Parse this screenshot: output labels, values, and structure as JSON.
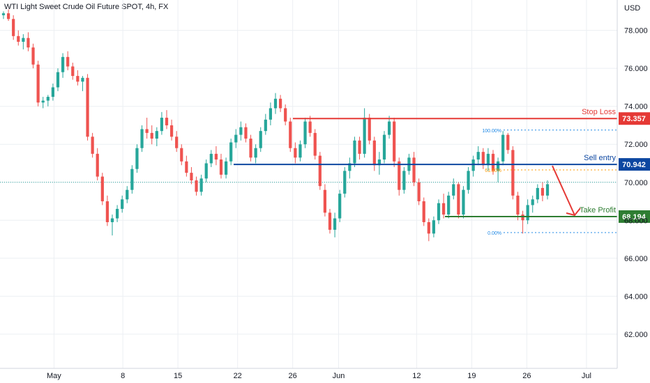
{
  "header": {
    "title": "WTI Light Sweet Crude Oil Future SPOT, 4h, FX",
    "currency": "USD"
  },
  "colors": {
    "up": "#26a69a",
    "down": "#ef5350",
    "stop": "#e53935",
    "entry": "#0d47a1",
    "profit": "#2e7d32",
    "fib": "#1e88e5",
    "fib618": "#ff9800",
    "grid": "#eceff3",
    "axis_text": "#131722"
  },
  "chart_data": {
    "type": "candlestick",
    "title": "WTI Light Sweet Crude Oil Future SPOT, 4h, FX",
    "ylabel": "USD",
    "ylim": [
      60.2,
      79.6
    ],
    "y_ticks": [
      "62.000",
      "64.000",
      "66.000",
      "68.000",
      "70.000",
      "72.000",
      "74.000",
      "76.000",
      "78.000"
    ],
    "x_ticks": [
      "May",
      "8",
      "15",
      "22",
      "26",
      "Jun",
      "12",
      "19",
      "26",
      "Jul"
    ],
    "last_price": 70.0,
    "levels": [
      {
        "name": "Stop Loss",
        "value": 73.357,
        "label": "73.357"
      },
      {
        "name": "Sell entry",
        "value": 70.942,
        "label": "70.942"
      },
      {
        "name": "Take Profit",
        "value": 68.194,
        "label": "68.194"
      }
    ],
    "fibonacci": [
      {
        "level": "100.00%",
        "value": 72.75
      },
      {
        "level": "61.80%",
        "value": 70.65
      },
      {
        "level": "0.00%",
        "value": 67.35
      }
    ],
    "arrow": {
      "from_price": 70.942,
      "to_price": 68.194
    },
    "candles": [
      [
        78.8,
        79.0,
        78.6,
        78.9
      ],
      [
        78.9,
        79.1,
        78.5,
        78.6
      ],
      [
        78.6,
        78.8,
        77.5,
        77.7
      ],
      [
        77.7,
        78.0,
        77.2,
        77.4
      ],
      [
        77.4,
        77.8,
        77.0,
        77.6
      ],
      [
        77.6,
        77.9,
        76.9,
        77.1
      ],
      [
        77.1,
        77.3,
        76.0,
        76.2
      ],
      [
        76.2,
        76.4,
        74.0,
        74.2
      ],
      [
        74.2,
        74.5,
        73.9,
        74.3
      ],
      [
        74.3,
        74.6,
        74.0,
        74.5
      ],
      [
        74.5,
        75.2,
        74.3,
        75.0
      ],
      [
        75.0,
        76.0,
        74.8,
        75.8
      ],
      [
        75.8,
        76.8,
        75.5,
        76.6
      ],
      [
        76.6,
        76.9,
        75.9,
        76.1
      ],
      [
        76.1,
        76.3,
        75.4,
        75.6
      ],
      [
        75.6,
        75.9,
        75.1,
        75.3
      ],
      [
        75.3,
        75.6,
        74.8,
        75.5
      ],
      [
        75.5,
        75.7,
        72.2,
        72.4
      ],
      [
        72.4,
        72.6,
        71.3,
        71.5
      ],
      [
        71.5,
        71.8,
        70.1,
        70.3
      ],
      [
        70.3,
        70.5,
        68.8,
        69.0
      ],
      [
        69.0,
        69.3,
        67.7,
        67.9
      ],
      [
        67.9,
        68.3,
        67.2,
        68.1
      ],
      [
        68.1,
        68.8,
        67.9,
        68.6
      ],
      [
        68.6,
        69.3,
        68.4,
        69.1
      ],
      [
        69.1,
        69.8,
        68.9,
        69.6
      ],
      [
        69.6,
        70.9,
        69.4,
        70.7
      ],
      [
        70.7,
        72.0,
        70.5,
        71.8
      ],
      [
        71.8,
        73.0,
        71.6,
        72.8
      ],
      [
        72.8,
        73.4,
        72.3,
        72.6
      ],
      [
        72.6,
        73.0,
        72.0,
        72.3
      ],
      [
        72.3,
        72.9,
        71.9,
        72.7
      ],
      [
        72.7,
        73.7,
        72.5,
        73.4
      ],
      [
        73.4,
        73.8,
        72.8,
        73.0
      ],
      [
        73.0,
        73.3,
        72.2,
        72.4
      ],
      [
        72.4,
        72.7,
        71.6,
        71.8
      ],
      [
        71.8,
        72.0,
        70.9,
        71.1
      ],
      [
        71.1,
        71.4,
        70.3,
        70.5
      ],
      [
        70.5,
        70.8,
        69.9,
        70.1
      ],
      [
        70.1,
        70.3,
        69.3,
        69.5
      ],
      [
        69.5,
        70.4,
        69.3,
        70.2
      ],
      [
        70.2,
        71.2,
        70.0,
        71.0
      ],
      [
        71.0,
        71.7,
        70.8,
        71.5
      ],
      [
        71.5,
        71.9,
        70.9,
        71.2
      ],
      [
        71.2,
        71.5,
        70.2,
        70.4
      ],
      [
        70.4,
        71.3,
        70.2,
        71.1
      ],
      [
        71.1,
        72.3,
        70.9,
        72.1
      ],
      [
        72.1,
        72.8,
        71.8,
        72.5
      ],
      [
        72.5,
        73.2,
        72.2,
        72.9
      ],
      [
        72.9,
        73.1,
        72.1,
        72.3
      ],
      [
        72.3,
        72.5,
        71.1,
        71.3
      ],
      [
        71.3,
        72.0,
        71.0,
        71.8
      ],
      [
        71.8,
        72.9,
        71.6,
        72.7
      ],
      [
        72.7,
        73.6,
        72.5,
        73.3
      ],
      [
        73.3,
        74.2,
        73.0,
        73.9
      ],
      [
        73.9,
        74.7,
        73.6,
        74.4
      ],
      [
        74.4,
        74.6,
        73.7,
        73.9
      ],
      [
        73.9,
        74.1,
        73.0,
        73.2
      ],
      [
        73.2,
        73.4,
        71.6,
        71.8
      ],
      [
        71.8,
        72.1,
        71.0,
        71.3
      ],
      [
        71.3,
        72.2,
        71.1,
        72.0
      ],
      [
        72.0,
        73.4,
        71.8,
        73.2
      ],
      [
        73.2,
        73.5,
        72.4,
        72.6
      ],
      [
        72.6,
        72.8,
        71.2,
        71.4
      ],
      [
        71.4,
        71.6,
        69.6,
        69.8
      ],
      [
        69.6,
        69.9,
        68.2,
        68.4
      ],
      [
        68.4,
        68.6,
        67.3,
        67.5
      ],
      [
        67.5,
        68.4,
        67.1,
        68.1
      ],
      [
        68.1,
        69.6,
        67.9,
        69.4
      ],
      [
        69.4,
        70.8,
        69.2,
        70.6
      ],
      [
        70.6,
        71.3,
        70.2,
        71.0
      ],
      [
        71.0,
        72.4,
        70.8,
        72.2
      ],
      [
        72.2,
        72.4,
        71.2,
        71.5
      ],
      [
        71.5,
        73.9,
        71.3,
        73.4
      ],
      [
        73.4,
        73.6,
        72.0,
        72.2
      ],
      [
        72.2,
        72.4,
        70.6,
        70.9
      ],
      [
        70.9,
        71.6,
        70.4,
        71.2
      ],
      [
        71.2,
        72.7,
        71.0,
        72.5
      ],
      [
        72.5,
        73.5,
        72.3,
        73.2
      ],
      [
        73.2,
        73.4,
        70.8,
        71.1
      ],
      [
        71.1,
        71.3,
        69.3,
        69.6
      ],
      [
        69.6,
        70.8,
        69.4,
        70.6
      ],
      [
        70.6,
        71.5,
        70.4,
        71.3
      ],
      [
        71.3,
        71.6,
        69.8,
        70.0
      ],
      [
        70.0,
        70.2,
        68.8,
        69.0
      ],
      [
        69.0,
        69.2,
        67.7,
        67.9
      ],
      [
        67.9,
        68.1,
        66.9,
        67.3
      ],
      [
        67.3,
        68.2,
        67.1,
        68.0
      ],
      [
        68.0,
        69.1,
        67.8,
        68.9
      ],
      [
        68.9,
        69.4,
        68.1,
        68.3
      ],
      [
        68.3,
        69.5,
        68.1,
        69.3
      ],
      [
        69.3,
        70.2,
        69.1,
        69.9
      ],
      [
        69.9,
        70.0,
        68.1,
        68.3
      ],
      [
        68.3,
        69.8,
        68.1,
        69.6
      ],
      [
        69.6,
        70.8,
        69.4,
        70.6
      ],
      [
        70.6,
        71.4,
        70.3,
        71.2
      ],
      [
        71.2,
        71.9,
        70.9,
        71.6
      ],
      [
        71.6,
        71.8,
        70.7,
        70.9
      ],
      [
        70.9,
        71.8,
        70.6,
        71.5
      ],
      [
        71.5,
        71.7,
        70.4,
        70.6
      ],
      [
        70.6,
        71.3,
        70.0,
        71.1
      ],
      [
        71.1,
        72.7,
        70.9,
        72.5
      ],
      [
        72.5,
        72.6,
        71.5,
        71.7
      ],
      [
        71.7,
        71.9,
        69.1,
        69.3
      ],
      [
        69.3,
        69.5,
        68.0,
        68.3
      ],
      [
        68.3,
        68.5,
        67.3,
        68.0
      ],
      [
        68.0,
        69.1,
        67.8,
        68.8
      ],
      [
        68.8,
        69.3,
        68.4,
        69.1
      ],
      [
        69.1,
        69.9,
        68.9,
        69.7
      ],
      [
        69.7,
        70.0,
        69.0,
        69.3
      ],
      [
        69.3,
        70.1,
        69.1,
        69.9
      ]
    ]
  }
}
